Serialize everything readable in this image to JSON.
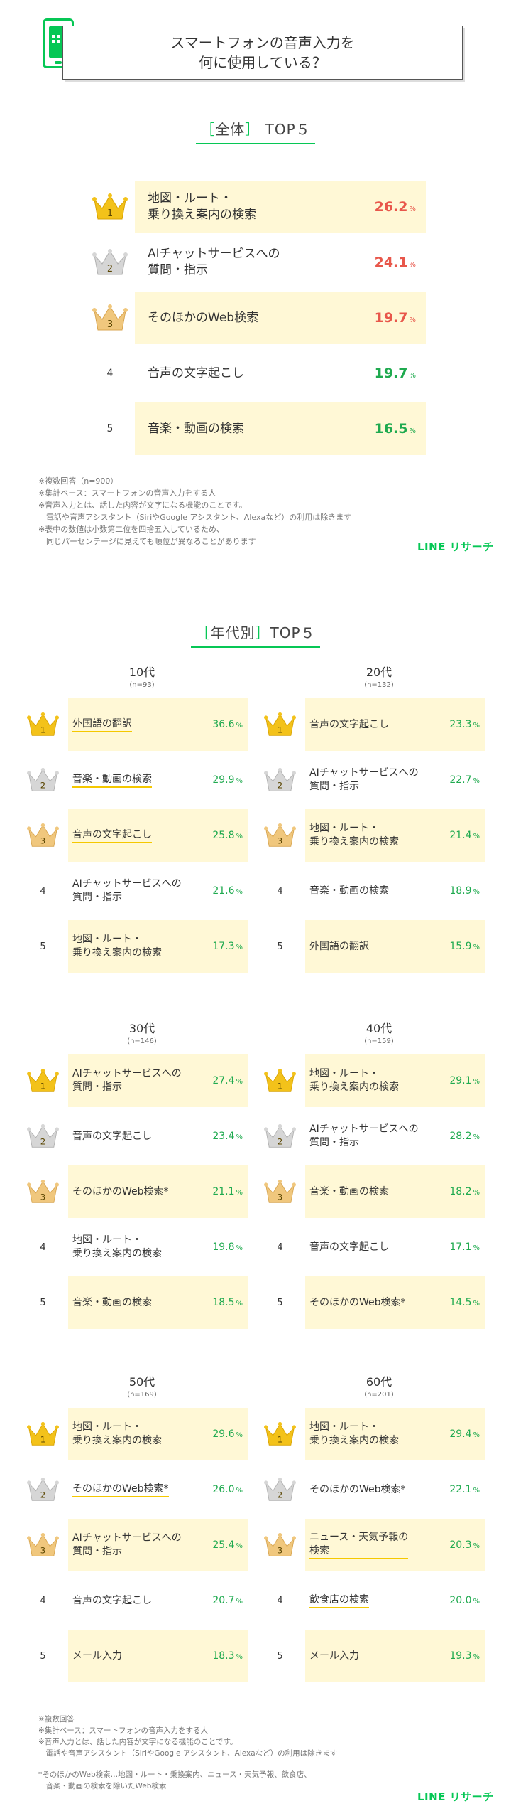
{
  "header": {
    "title": "スマートフォンの音声入力を\n何に使用している？"
  },
  "overall": {
    "title_bracket_open": "［",
    "title_label": "全体",
    "title_bracket_close": "］",
    "title_suffix": "TOP５",
    "unit": "%",
    "items": [
      {
        "rank": "1",
        "label": "地図・ルート・\n乗り換え案内の検索",
        "value": "26.2",
        "color": "#e8574b",
        "highlight": true
      },
      {
        "rank": "2",
        "label": "AIチャットサービスへの\n質問・指示",
        "value": "24.1",
        "color": "#e8574b",
        "highlight": false
      },
      {
        "rank": "3",
        "label": "そのほかのWeb検索",
        "value": "19.7",
        "color": "#e8574b",
        "highlight": true
      },
      {
        "rank": "4",
        "label": "音声の文字起こし",
        "value": "19.7",
        "color": "#1faa4f",
        "highlight": false
      },
      {
        "rank": "5",
        "label": "音楽・動画の検索",
        "value": "16.5",
        "color": "#1faa4f",
        "highlight": true
      }
    ],
    "notes": "※複数回答（n=900）\n※集計ベース：スマートフォンの音声入力をする人\n※音声入力とは、話した内容が文字になる機能のことです。\n　電話や音声アシスタント（SiriやGoogle アシスタント、Alexaなど）の利用は除きます\n※表中の数値は小数第二位を四捨五入しているため、\n　同じパーセンテージに見えても順位が異なることがあります"
  },
  "brand": "LINE リサーチ",
  "by_age": {
    "title_bracket_open": "［",
    "title_label": "年代別",
    "title_bracket_close": "］",
    "title_suffix": "TOP５",
    "groups": [
      {
        "age": "10代",
        "n": "(n=93)",
        "items": [
          {
            "rank": "1",
            "label": "外国語の翻訳",
            "value": "36.6",
            "uline": true
          },
          {
            "rank": "2",
            "label": "音楽・動画の検索",
            "value": "29.9",
            "uline": true
          },
          {
            "rank": "3",
            "label": "音声の文字起こし",
            "value": "25.8",
            "uline": true
          },
          {
            "rank": "4",
            "label": "AIチャットサービスへの\n質問・指示",
            "value": "21.6",
            "uline": false
          },
          {
            "rank": "5",
            "label": "地図・ルート・\n乗り換え案内の検索",
            "value": "17.3",
            "uline": false
          }
        ]
      },
      {
        "age": "20代",
        "n": "(n=132)",
        "items": [
          {
            "rank": "1",
            "label": "音声の文字起こし",
            "value": "23.3",
            "uline": false
          },
          {
            "rank": "2",
            "label": "AIチャットサービスへの\n質問・指示",
            "value": "22.7",
            "uline": false
          },
          {
            "rank": "3",
            "label": "地図・ルート・\n乗り換え案内の検索",
            "value": "21.4",
            "uline": false
          },
          {
            "rank": "4",
            "label": "音楽・動画の検索",
            "value": "18.9",
            "uline": false
          },
          {
            "rank": "5",
            "label": "外国語の翻訳",
            "value": "15.9",
            "uline": false
          }
        ]
      },
      {
        "age": "30代",
        "n": "(n=146)",
        "items": [
          {
            "rank": "1",
            "label": "AIチャットサービスへの\n質問・指示",
            "value": "27.4",
            "uline": false
          },
          {
            "rank": "2",
            "label": "音声の文字起こし",
            "value": "23.4",
            "uline": false
          },
          {
            "rank": "3",
            "label": "そのほかのWeb検索*",
            "value": "21.1",
            "uline": false
          },
          {
            "rank": "4",
            "label": "地図・ルート・\n乗り換え案内の検索",
            "value": "19.8",
            "uline": false
          },
          {
            "rank": "5",
            "label": "音楽・動画の検索",
            "value": "18.5",
            "uline": false
          }
        ]
      },
      {
        "age": "40代",
        "n": "(n=159)",
        "items": [
          {
            "rank": "1",
            "label": "地図・ルート・\n乗り換え案内の検索",
            "value": "29.1",
            "uline": false
          },
          {
            "rank": "2",
            "label": "AIチャットサービスへの\n質問・指示",
            "value": "28.2",
            "uline": false
          },
          {
            "rank": "3",
            "label": "音楽・動画の検索",
            "value": "18.2",
            "uline": false
          },
          {
            "rank": "4",
            "label": "音声の文字起こし",
            "value": "17.1",
            "uline": false
          },
          {
            "rank": "5",
            "label": "そのほかのWeb検索*",
            "value": "14.5",
            "uline": false
          }
        ]
      },
      {
        "age": "50代",
        "n": "(n=169)",
        "items": [
          {
            "rank": "1",
            "label": "地図・ルート・\n乗り換え案内の検索",
            "value": "29.6",
            "uline": false
          },
          {
            "rank": "2",
            "label": "そのほかのWeb検索*",
            "value": "26.0",
            "uline": true
          },
          {
            "rank": "3",
            "label": "AIチャットサービスへの\n質問・指示",
            "value": "25.4",
            "uline": false
          },
          {
            "rank": "4",
            "label": "音声の文字起こし",
            "value": "20.7",
            "uline": false
          },
          {
            "rank": "5",
            "label": "メール入力",
            "value": "18.3",
            "uline": false
          }
        ]
      },
      {
        "age": "60代",
        "n": "(n=201)",
        "items": [
          {
            "rank": "1",
            "label": "地図・ルート・\n乗り換え案内の検索",
            "value": "29.4",
            "uline": false
          },
          {
            "rank": "2",
            "label": "そのほかのWeb検索*",
            "value": "22.1",
            "uline": false
          },
          {
            "rank": "3",
            "label": "ニュース・天気予報の\n検索",
            "value": "20.3",
            "uline": true
          },
          {
            "rank": "4",
            "label": "飲食店の検索",
            "value": "20.0",
            "uline": true
          },
          {
            "rank": "5",
            "label": "メール入力",
            "value": "19.3",
            "uline": false
          }
        ]
      }
    ],
    "notes": "※複数回答\n※集計ベース：スマートフォンの音声入力をする人\n※音声入力とは、話した内容が文字になる機能のことです。\n　電話や音声アシスタント（SiriやGoogle アシスタント、Alexaなど）の利用は除きます",
    "footnote": "*そのほかのWeb検索…地図・ルート・乗換案内、ニュース・天気予報、飲食店、\n　音楽・動画の検索を除いたWeb検索"
  },
  "chart_data": [
    {
      "type": "table",
      "title": "スマートフォンの音声入力を何に使用している？ ［全体］TOP５",
      "categories": [
        "地図・ルート・乗り換え案内の検索",
        "AIチャットサービスへの質問・指示",
        "そのほかのWeb検索",
        "音声の文字起こし",
        "音楽・動画の検索"
      ],
      "values": [
        26.2,
        24.1,
        19.7,
        19.7,
        16.5
      ]
    },
    {
      "type": "table",
      "title": "［年代別］TOP５",
      "series": [
        {
          "name": "10代",
          "categories": [
            "外国語の翻訳",
            "音楽・動画の検索",
            "音声の文字起こし",
            "AIチャットサービスへの質問・指示",
            "地図・ルート・乗り換え案内の検索"
          ],
          "values": [
            36.6,
            29.9,
            25.8,
            21.6,
            17.3
          ]
        },
        {
          "name": "20代",
          "categories": [
            "音声の文字起こし",
            "AIチャットサービスへの質問・指示",
            "地図・ルート・乗り換え案内の検索",
            "音楽・動画の検索",
            "外国語の翻訳"
          ],
          "values": [
            23.3,
            22.7,
            21.4,
            18.9,
            15.9
          ]
        },
        {
          "name": "30代",
          "categories": [
            "AIチャットサービスへの質問・指示",
            "音声の文字起こし",
            "そのほかのWeb検索*",
            "地図・ルート・乗り換え案内の検索",
            "音楽・動画の検索"
          ],
          "values": [
            27.4,
            23.4,
            21.1,
            19.8,
            18.5
          ]
        },
        {
          "name": "40代",
          "categories": [
            "地図・ルート・乗り換え案内の検索",
            "AIチャットサービスへの質問・指示",
            "音楽・動画の検索",
            "音声の文字起こし",
            "そのほかのWeb検索*"
          ],
          "values": [
            29.1,
            28.2,
            18.2,
            17.1,
            14.5
          ]
        },
        {
          "name": "50代",
          "categories": [
            "地図・ルート・乗り換え案内の検索",
            "そのほかのWeb検索*",
            "AIチャットサービスへの質問・指示",
            "音声の文字起こし",
            "メール入力"
          ],
          "values": [
            29.6,
            26.0,
            25.4,
            20.7,
            18.3
          ]
        },
        {
          "name": "60代",
          "categories": [
            "地図・ルート・乗り換え案内の検索",
            "そのほかのWeb検索*",
            "ニュース・天気予報の検索",
            "飲食店の検索",
            "メール入力"
          ],
          "values": [
            29.4,
            22.1,
            20.3,
            20.0,
            19.3
          ]
        }
      ]
    }
  ]
}
